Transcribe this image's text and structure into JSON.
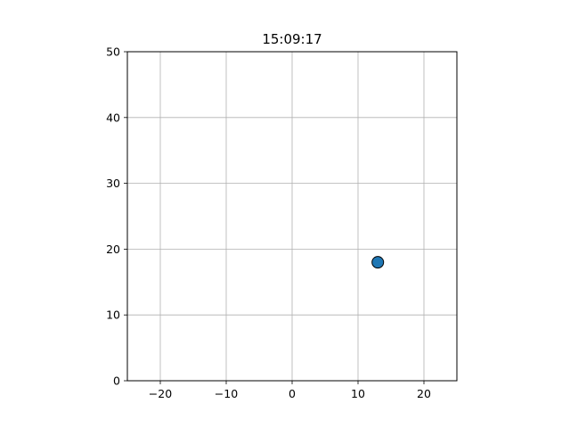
{
  "chart_data": {
    "type": "scatter",
    "title": "15:09:17",
    "xlabel": "",
    "ylabel": "",
    "xlim": [
      -25,
      25
    ],
    "ylim": [
      0,
      50
    ],
    "x_ticks": [
      -20,
      -10,
      0,
      10,
      20
    ],
    "x_tick_labels": [
      "−20",
      "−10",
      "0",
      "10",
      "20"
    ],
    "y_ticks": [
      0,
      10,
      20,
      30,
      40,
      50
    ],
    "y_tick_labels": [
      "0",
      "10",
      "20",
      "30",
      "40",
      "50"
    ],
    "grid": true,
    "series": [
      {
        "points": [
          {
            "x": 13,
            "y": 18
          }
        ],
        "color": "#1f77b4",
        "edge_color": "#000000"
      }
    ]
  }
}
